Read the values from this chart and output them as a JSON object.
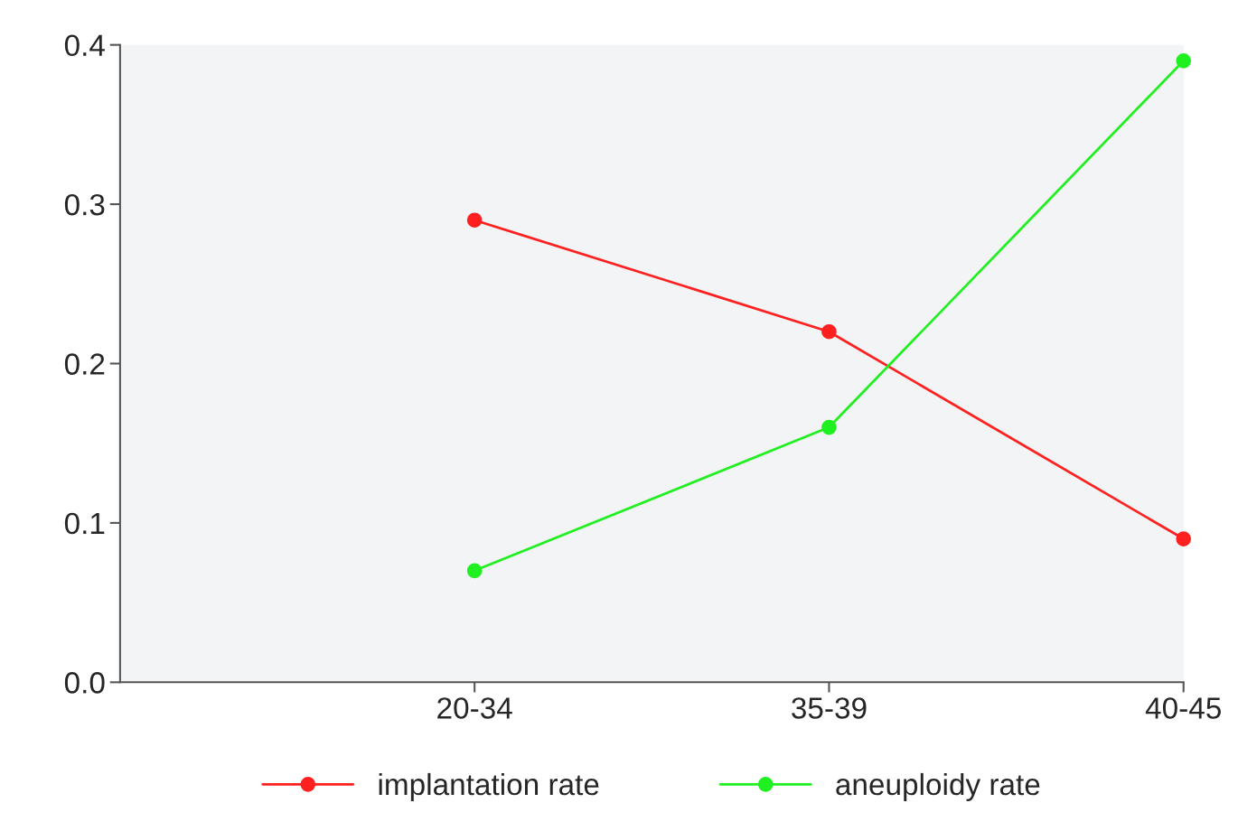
{
  "chart_data": {
    "type": "line",
    "categories": [
      "20-34",
      "35-39",
      "40-45"
    ],
    "series": [
      {
        "name": "implantation rate",
        "color": "#ff2020",
        "values": [
          0.29,
          0.22,
          0.09
        ]
      },
      {
        "name": "aneuploidy rate",
        "color": "#20f020",
        "values": [
          0.07,
          0.16,
          0.39
        ]
      }
    ],
    "ylim": [
      0,
      0.4
    ],
    "yticks": [
      {
        "value": 0,
        "label": "0.0"
      },
      0.1,
      0.2,
      0.3,
      0.4
    ],
    "marker": "circle",
    "line_style": "solid",
    "grid": false,
    "legend": "bottom"
  }
}
